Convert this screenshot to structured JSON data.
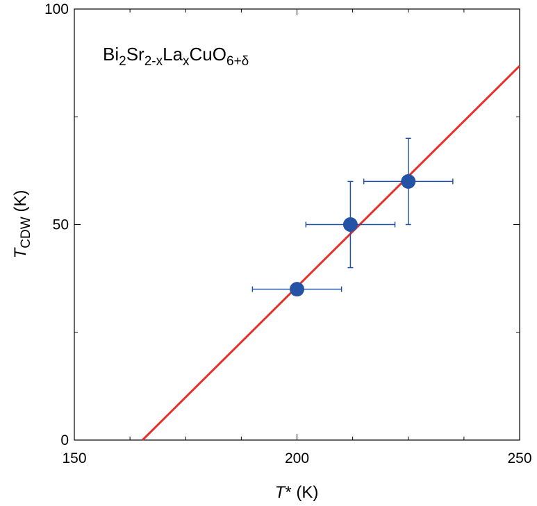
{
  "chart_data": {
    "type": "scatter",
    "xlabel": {
      "var": "T",
      "sup": "*",
      "unit": " (K)"
    },
    "ylabel": {
      "var": "T",
      "sub": "CDW",
      "unit": " (K)"
    },
    "xlim": [
      150,
      250
    ],
    "ylim": [
      0,
      100
    ],
    "x_ticks": [
      150,
      200,
      250
    ],
    "y_ticks": [
      0,
      50,
      100
    ],
    "x_minor_step": 12.5,
    "y_minor_step": 25,
    "grid": false,
    "annotation": {
      "parts": [
        {
          "t": "Bi",
          "s": ""
        },
        {
          "t": "2",
          "s": "sub"
        },
        {
          "t": "Sr",
          "s": ""
        },
        {
          "t": "2-x",
          "s": "sub"
        },
        {
          "t": "La",
          "s": ""
        },
        {
          "t": "x",
          "s": "sub"
        },
        {
          "t": "CuO",
          "s": ""
        },
        {
          "t": "6+δ",
          "s": "sub"
        }
      ]
    },
    "points": [
      {
        "x": 200,
        "y": 35,
        "xerr": 10,
        "yerr": 0
      },
      {
        "x": 212,
        "y": 50,
        "xerr": 10,
        "yerr": 10
      },
      {
        "x": 225,
        "y": 60,
        "xerr": 10,
        "yerr": 10
      }
    ],
    "fit_line": {
      "x": [
        165.3,
        250
      ],
      "y": [
        0,
        86.8
      ]
    },
    "colors": {
      "points": "#2453a6",
      "errorbars": "#2453a6",
      "fit_line": "#e8302a",
      "axes": "#000000"
    }
  }
}
